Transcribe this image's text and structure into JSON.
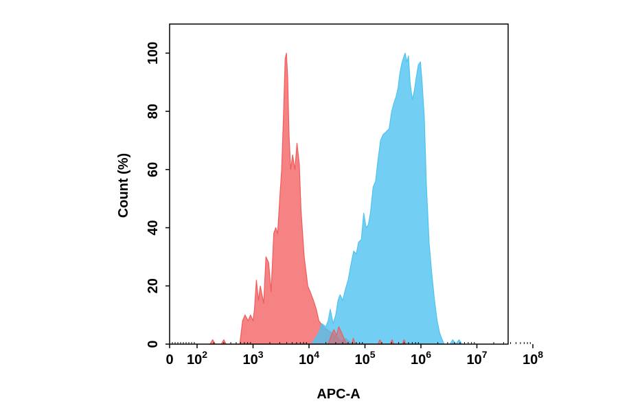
{
  "chart_data": {
    "type": "area",
    "title": "",
    "xlabel": "APC-A",
    "ylabel": "Count (%)",
    "x_scale": "log",
    "xlim": [
      0,
      100000000
    ],
    "ylim": [
      0,
      110
    ],
    "x_ticks": [
      {
        "value": 0,
        "base": "0",
        "exp": ""
      },
      {
        "value": 100,
        "base": "10",
        "exp": "2"
      },
      {
        "value": 1000,
        "base": "10",
        "exp": "3"
      },
      {
        "value": 10000,
        "base": "10",
        "exp": "4"
      },
      {
        "value": 100000,
        "base": "10",
        "exp": "5"
      },
      {
        "value": 1000000,
        "base": "10",
        "exp": "6"
      },
      {
        "value": 10000000,
        "base": "10",
        "exp": "7"
      },
      {
        "value": 100000000,
        "base": "10",
        "exp": "8"
      }
    ],
    "y_ticks": [
      0,
      20,
      40,
      60,
      80,
      100
    ],
    "grid": false,
    "legend": "none",
    "series": [
      {
        "color": "#f15a5a",
        "fill_opacity": 0.75,
        "points": [
          [
            170,
            0
          ],
          [
            190,
            1.5
          ],
          [
            210,
            0
          ],
          [
            270,
            0
          ],
          [
            300,
            1.5
          ],
          [
            330,
            0
          ],
          [
            580,
            0
          ],
          [
            650,
            8
          ],
          [
            720,
            10
          ],
          [
            820,
            8
          ],
          [
            900,
            10
          ],
          [
            1000,
            8
          ],
          [
            1060,
            12
          ],
          [
            1150,
            22
          ],
          [
            1250,
            15
          ],
          [
            1350,
            20
          ],
          [
            1550,
            14
          ],
          [
            1700,
            30
          ],
          [
            1900,
            28
          ],
          [
            2100,
            18
          ],
          [
            2350,
            38
          ],
          [
            2550,
            40
          ],
          [
            2750,
            38
          ],
          [
            3000,
            50
          ],
          [
            3250,
            60
          ],
          [
            3500,
            78
          ],
          [
            3750,
            98
          ],
          [
            3950,
            100
          ],
          [
            4150,
            92
          ],
          [
            4400,
            72
          ],
          [
            4700,
            60
          ],
          [
            5100,
            65
          ],
          [
            5600,
            60
          ],
          [
            6100,
            69
          ],
          [
            6700,
            62
          ],
          [
            7200,
            46
          ],
          [
            8200,
            30
          ],
          [
            9500,
            20
          ],
          [
            10500,
            18
          ],
          [
            12000,
            15
          ],
          [
            13500,
            12
          ],
          [
            15000,
            8
          ],
          [
            18000,
            6
          ],
          [
            21000,
            5
          ],
          [
            25000,
            4
          ],
          [
            29000,
            3
          ],
          [
            33000,
            2
          ],
          [
            38000,
            1
          ],
          [
            45000,
            2
          ],
          [
            52000,
            1
          ],
          [
            60000,
            0
          ]
        ]
      },
      {
        "color": "#4fc3f0",
        "fill_opacity": 0.8,
        "points": [
          [
            11000,
            0
          ],
          [
            13000,
            2
          ],
          [
            15000,
            4
          ],
          [
            17000,
            7
          ],
          [
            20000,
            6
          ],
          [
            22000,
            8
          ],
          [
            24000,
            12
          ],
          [
            27000,
            7
          ],
          [
            30000,
            10
          ],
          [
            33000,
            15
          ],
          [
            36000,
            17
          ],
          [
            40000,
            15
          ],
          [
            45000,
            19
          ],
          [
            50000,
            22
          ],
          [
            57000,
            28
          ],
          [
            63000,
            32
          ],
          [
            70000,
            31
          ],
          [
            77000,
            35
          ],
          [
            86000,
            36
          ],
          [
            95000,
            45
          ],
          [
            105000,
            40
          ],
          [
            115000,
            41
          ],
          [
            125000,
            45
          ],
          [
            140000,
            54
          ],
          [
            155000,
            56
          ],
          [
            170000,
            63
          ],
          [
            190000,
            70
          ],
          [
            210000,
            72
          ],
          [
            240000,
            73
          ],
          [
            270000,
            74
          ],
          [
            300000,
            80
          ],
          [
            330000,
            83
          ],
          [
            360000,
            85
          ],
          [
            390000,
            88
          ],
          [
            420000,
            93
          ],
          [
            450000,
            96
          ],
          [
            480000,
            98
          ],
          [
            520000,
            100
          ],
          [
            560000,
            97
          ],
          [
            600000,
            99
          ],
          [
            640000,
            90
          ],
          [
            700000,
            84
          ],
          [
            760000,
            87
          ],
          [
            830000,
            92
          ],
          [
            900000,
            96
          ],
          [
            980000,
            97
          ],
          [
            1050000,
            90
          ],
          [
            1150000,
            78
          ],
          [
            1250000,
            55
          ],
          [
            1400000,
            35
          ],
          [
            1550000,
            25
          ],
          [
            1750000,
            15
          ],
          [
            1950000,
            8
          ],
          [
            2150000,
            4
          ],
          [
            2350000,
            2
          ],
          [
            2600000,
            0
          ],
          [
            3300000,
            0
          ],
          [
            3700000,
            1.5
          ],
          [
            4200000,
            0
          ],
          [
            4800000,
            1.5
          ],
          [
            5400000,
            0
          ]
        ]
      },
      {
        "color": "#f15a5a",
        "fill_opacity": 0.55,
        "points": [
          [
            22000,
            0
          ],
          [
            25000,
            3
          ],
          [
            28000,
            5
          ],
          [
            31000,
            3
          ],
          [
            34000,
            6
          ],
          [
            38000,
            4
          ],
          [
            42000,
            2
          ],
          [
            48000,
            0
          ],
          [
            58000,
            0
          ],
          [
            62000,
            2
          ],
          [
            67000,
            0
          ],
          [
            170000,
            0
          ],
          [
            185000,
            1.5
          ],
          [
            200000,
            0
          ],
          [
            280000,
            0
          ],
          [
            305000,
            1.5
          ],
          [
            330000,
            0
          ],
          [
            460000,
            0
          ],
          [
            500000,
            1.5
          ],
          [
            540000,
            0
          ]
        ]
      }
    ]
  }
}
